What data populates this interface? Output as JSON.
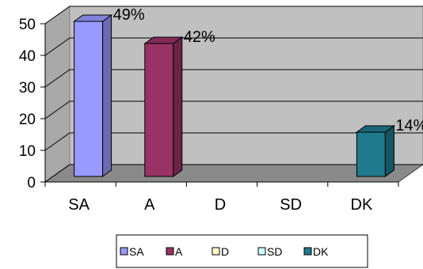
{
  "chart_data": {
    "type": "bar",
    "categories": [
      "SA",
      "A",
      "D",
      "SD",
      "DK"
    ],
    "values": [
      49,
      42,
      0,
      0,
      14
    ],
    "data_labels": [
      "49%",
      "42%",
      "",
      "",
      "14%"
    ],
    "ylim": [
      0,
      50
    ],
    "yticks": [
      0,
      10,
      20,
      30,
      40,
      50
    ],
    "grid": true,
    "legend": {
      "position": "bottom",
      "entries": [
        "SA",
        "A",
        "D",
        "SD",
        "DK"
      ]
    },
    "colors": {
      "SA": "#9999ff",
      "A": "#993366",
      "D": "#ffffcc",
      "SD": "#ccffff",
      "DK": "#1e7a8c",
      "wall": "#c0c0c0",
      "floor": "#8a8a8a"
    }
  }
}
